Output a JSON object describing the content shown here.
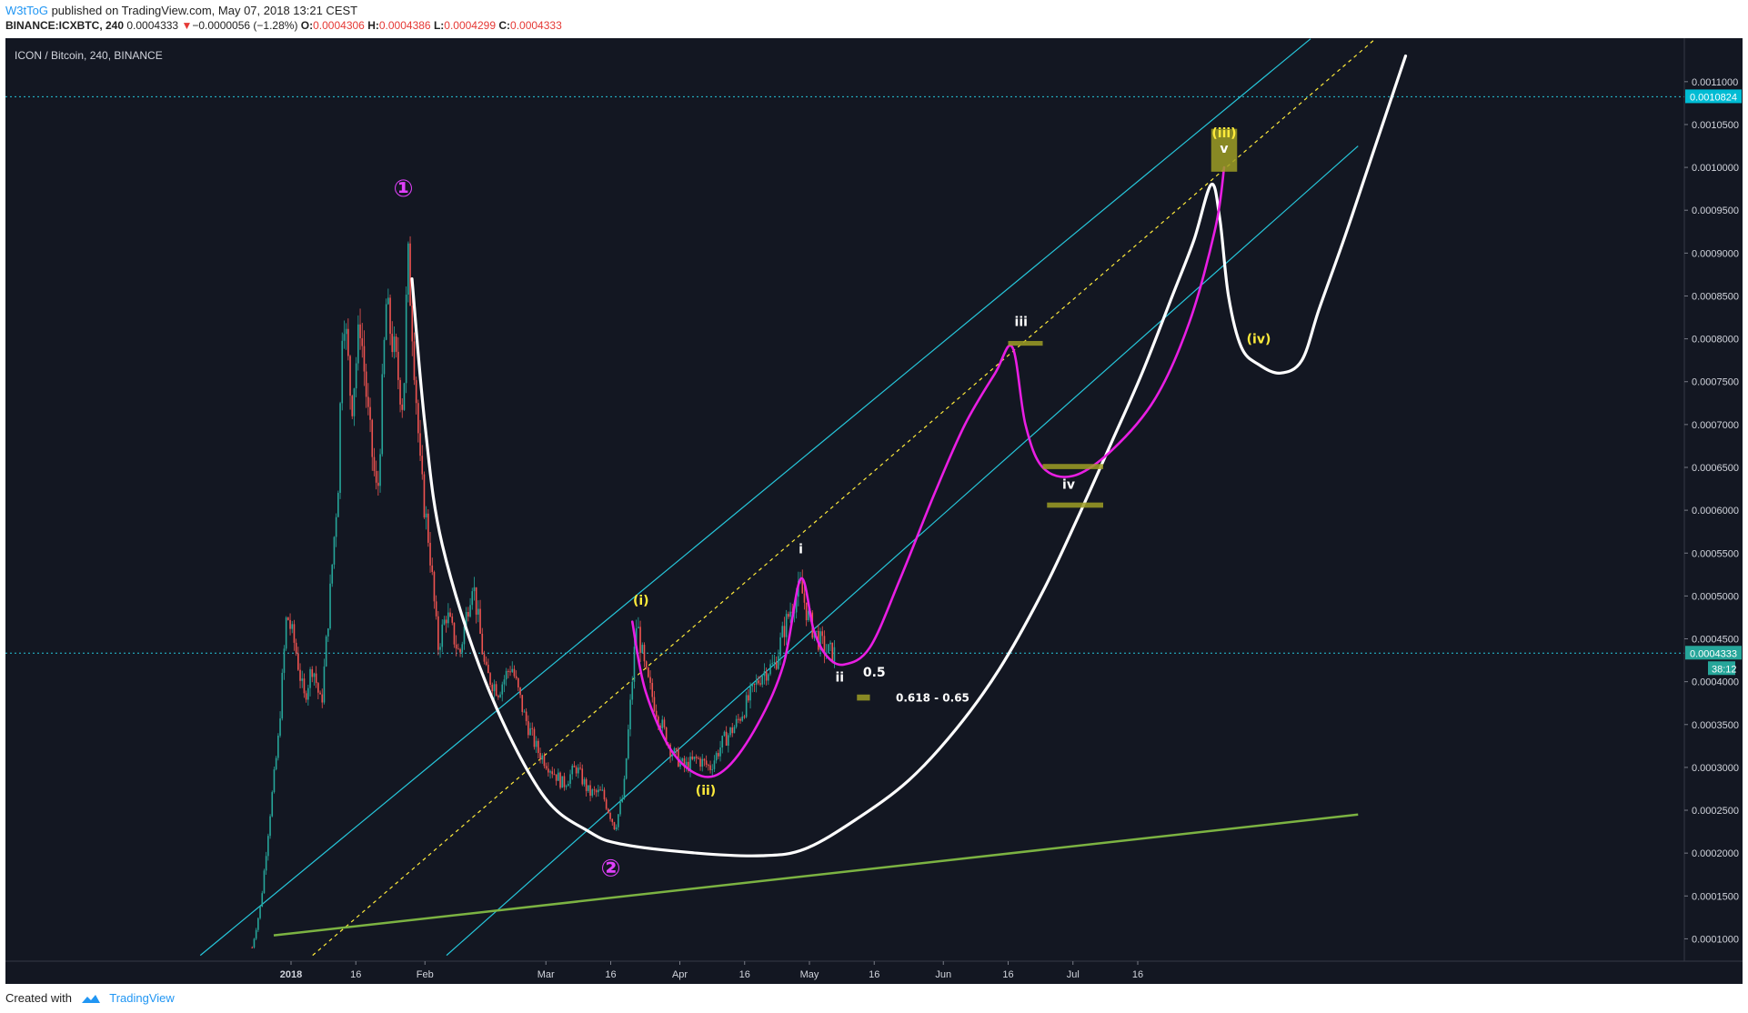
{
  "header": {
    "user": "W3tToG",
    "published": " published on TradingView.com, May 07, 2018 13:21 CEST",
    "symbol": "BINANCE:ICXBTC, 240",
    "last": "0.0004333",
    "change_arrow": "▼",
    "change": "−0.0000056 (−1.28%)",
    "o_label": "O:",
    "o_value": "0.0004306",
    "h_label": "H:",
    "h_value": "0.0004386",
    "l_label": "L:",
    "l_value": "0.0004299",
    "c_label": "C:",
    "c_value": "0.0004333"
  },
  "chart_title": "ICON / Bitcoin, 240, BINANCE",
  "footer": {
    "created_with": "Created with",
    "brand": "TradingView"
  },
  "colors": {
    "background": "#131722",
    "axis_text": "#d1d4dc",
    "channel": "#26c6da",
    "midline": "#ffeb3b",
    "support": "#7cb342",
    "white_path": "#ffffff",
    "magenta_path": "#e91ee3",
    "wave_label_yellow": "#ffeb3b",
    "wave_label_white": "#ffffff",
    "wave_label_magenta": "#e040fb",
    "price_line": "#26c6da",
    "box": "#9e9d24",
    "candle_up": "#26a69a",
    "candle_down": "#ef5350"
  },
  "chart_data": {
    "type": "candlestick",
    "title": "ICON / Bitcoin, 240, BINANCE",
    "xlabel": "",
    "ylabel": "",
    "x_tick_labels": [
      "2018",
      "16",
      "Feb",
      "Mar",
      "16",
      "Apr",
      "16",
      "May",
      "16",
      "Jun",
      "16",
      "Jul",
      "16"
    ],
    "x_tick_dates": [
      "2018-01-01",
      "2018-01-16",
      "2018-02-01",
      "2018-03-01",
      "2018-03-16",
      "2018-04-01",
      "2018-04-16",
      "2018-05-01",
      "2018-05-16",
      "2018-06-01",
      "2018-06-16",
      "2018-07-01",
      "2018-07-16"
    ],
    "y_tick_labels": [
      "0.0001000",
      "0.0001500",
      "0.0002000",
      "0.0002500",
      "0.0003000",
      "0.0003500",
      "0.0004000",
      "0.0004500",
      "0.0005000",
      "0.0005500",
      "0.0006000",
      "0.0006500",
      "0.0007000",
      "0.0007500",
      "0.0008000",
      "0.0008500",
      "0.0009000",
      "0.0009500",
      "0.0010000",
      "0.0010500",
      "0.0011000"
    ],
    "ylim": [
      8.2e-05,
      0.00114
    ],
    "grid": false,
    "current_price": {
      "value": 0.0004333,
      "label": "0.0004333",
      "countdown": "38:12"
    },
    "horizontal_line": {
      "value": 0.0010824,
      "label": "0.0010824"
    },
    "price_path": [
      [
        "2017-12-23",
        9e-05
      ],
      [
        "2017-12-25",
        0.00014
      ],
      [
        "2017-12-27",
        0.00024
      ],
      [
        "2017-12-29",
        0.00033
      ],
      [
        "2017-12-31",
        0.00048
      ],
      [
        "2018-01-02",
        0.00044
      ],
      [
        "2018-01-04",
        0.00038
      ],
      [
        "2018-01-06",
        0.00042
      ],
      [
        "2018-01-08",
        0.00037
      ],
      [
        "2018-01-10",
        0.0005
      ],
      [
        "2018-01-12",
        0.00064
      ],
      [
        "2018-01-13",
        0.00085
      ],
      [
        "2018-01-15",
        0.00072
      ],
      [
        "2018-01-17",
        0.00082
      ],
      [
        "2018-01-19",
        0.0007
      ],
      [
        "2018-01-21",
        0.00061
      ],
      [
        "2018-01-23",
        0.00084
      ],
      [
        "2018-01-25",
        0.00078
      ],
      [
        "2018-01-27",
        0.00072
      ],
      [
        "2018-01-28",
        0.0009
      ],
      [
        "2018-01-29",
        0.00082
      ],
      [
        "2018-01-31",
        0.00064
      ],
      [
        "2018-02-02",
        0.00056
      ],
      [
        "2018-02-04",
        0.00044
      ],
      [
        "2018-02-06",
        0.00048
      ],
      [
        "2018-02-09",
        0.00043
      ],
      [
        "2018-02-12",
        0.00052
      ],
      [
        "2018-02-15",
        0.00041
      ],
      [
        "2018-02-18",
        0.00039
      ],
      [
        "2018-02-21",
        0.00042
      ],
      [
        "2018-02-24",
        0.00036
      ],
      [
        "2018-02-27",
        0.00032
      ],
      [
        "2018-03-02",
        0.0003
      ],
      [
        "2018-03-05",
        0.00028
      ],
      [
        "2018-03-08",
        0.0003
      ],
      [
        "2018-03-11",
        0.00027
      ],
      [
        "2018-03-14",
        0.00027
      ],
      [
        "2018-03-17",
        0.00023
      ],
      [
        "2018-03-19",
        0.00027
      ],
      [
        "2018-03-22",
        0.00047
      ],
      [
        "2018-03-24",
        0.00041
      ],
      [
        "2018-03-27",
        0.00036
      ],
      [
        "2018-03-30",
        0.00032
      ],
      [
        "2018-04-02",
        0.0003
      ],
      [
        "2018-04-05",
        0.00031
      ],
      [
        "2018-04-08",
        0.0003
      ],
      [
        "2018-04-11",
        0.00033
      ],
      [
        "2018-04-14",
        0.00035
      ],
      [
        "2018-04-17",
        0.00038
      ],
      [
        "2018-04-20",
        0.00041
      ],
      [
        "2018-04-23",
        0.00042
      ],
      [
        "2018-04-25",
        0.00046
      ],
      [
        "2018-04-27",
        0.00049
      ],
      [
        "2018-04-29",
        0.00051
      ],
      [
        "2018-05-01",
        0.00047
      ],
      [
        "2018-05-03",
        0.00045
      ],
      [
        "2018-05-05",
        0.000435
      ],
      [
        "2018-05-07",
        0.000433
      ]
    ],
    "channel_upper": [
      [
        "2017-12-11",
        8.07e-05
      ],
      [
        "2018-08-25",
        0.00115
      ]
    ],
    "channel_lower": [
      [
        "2018-02-06",
        8.07e-05
      ],
      [
        "2018-09-05",
        0.001025
      ]
    ],
    "channel_mid": [
      [
        "2018-01-06",
        8.07e-05
      ],
      [
        "2018-09-09",
        0.00115
      ]
    ],
    "support_line": [
      [
        "2017-12-28",
        0.000104
      ],
      [
        "2018-09-05",
        0.000245
      ]
    ],
    "white_projection": [
      [
        "2018-01-29",
        0.00087
      ],
      [
        "2018-02-01",
        0.0007
      ],
      [
        "2018-02-05",
        0.00056
      ],
      [
        "2018-02-15",
        0.0004
      ],
      [
        "2018-02-28",
        0.00027
      ],
      [
        "2018-03-11",
        0.000225
      ],
      [
        "2018-03-19",
        0.00021
      ],
      [
        "2018-04-05",
        0.0002
      ],
      [
        "2018-04-20",
        0.000197
      ],
      [
        "2018-04-30",
        0.000205
      ],
      [
        "2018-05-12",
        0.00024
      ],
      [
        "2018-05-24",
        0.000285
      ],
      [
        "2018-06-04",
        0.000345
      ],
      [
        "2018-06-14",
        0.000415
      ],
      [
        "2018-06-24",
        0.000505
      ],
      [
        "2018-07-02",
        0.00059
      ],
      [
        "2018-07-10",
        0.00068
      ],
      [
        "2018-07-17",
        0.00076
      ],
      [
        "2018-07-24",
        0.00085
      ],
      [
        "2018-07-29",
        0.000915
      ],
      [
        "2018-08-02",
        0.00098
      ],
      [
        "2018-08-04",
        0.00094
      ],
      [
        "2018-08-06",
        0.00085
      ],
      [
        "2018-08-09",
        0.00079
      ],
      [
        "2018-08-13",
        0.00077
      ],
      [
        "2018-08-18",
        0.00076
      ],
      [
        "2018-08-23",
        0.000775
      ],
      [
        "2018-08-27",
        0.000835
      ],
      [
        "2018-09-02",
        0.00092
      ],
      [
        "2018-09-08",
        0.00101
      ],
      [
        "2018-09-16",
        0.00113
      ]
    ],
    "magenta_projection": [
      [
        "2018-03-21",
        0.00047
      ],
      [
        "2018-03-24",
        0.00039
      ],
      [
        "2018-03-30",
        0.00032
      ],
      [
        "2018-04-06",
        0.00029
      ],
      [
        "2018-04-12",
        0.0003
      ],
      [
        "2018-04-19",
        0.00035
      ],
      [
        "2018-04-25",
        0.00042
      ],
      [
        "2018-04-29",
        0.00052
      ],
      [
        "2018-05-02",
        0.00046
      ],
      [
        "2018-05-05",
        0.00043
      ],
      [
        "2018-05-09",
        0.00042
      ],
      [
        "2018-05-15",
        0.00044
      ],
      [
        "2018-05-22",
        0.00052
      ],
      [
        "2018-05-30",
        0.00062
      ],
      [
        "2018-06-06",
        0.0007
      ],
      [
        "2018-06-13",
        0.00076
      ],
      [
        "2018-06-17",
        0.00079
      ],
      [
        "2018-06-20",
        0.0007
      ],
      [
        "2018-06-24",
        0.00065
      ],
      [
        "2018-07-01",
        0.00064
      ],
      [
        "2018-07-10",
        0.00067
      ],
      [
        "2018-07-20",
        0.00073
      ],
      [
        "2018-07-28",
        0.00082
      ],
      [
        "2018-08-03",
        0.00093
      ],
      [
        "2018-08-05",
        0.001
      ]
    ],
    "boxes": [
      {
        "from": "2018-06-16",
        "to": "2018-06-24",
        "ymin": 0.000792,
        "ymax": 0.0007975
      },
      {
        "from": "2018-06-24",
        "to": "2018-07-08",
        "ymin": 0.000648,
        "ymax": 0.000654
      },
      {
        "from": "2018-06-25",
        "to": "2018-07-08",
        "ymin": 0.000603,
        "ymax": 0.000609
      },
      {
        "from": "2018-05-12",
        "to": "2018-05-15",
        "ymin": 0.000378,
        "ymax": 0.000385
      },
      {
        "from": "2018-08-02",
        "to": "2018-08-08",
        "ymin": 0.000995,
        "ymax": 0.001045
      }
    ],
    "annotations": [
      {
        "text": "①",
        "x": "2018-01-27",
        "y": 0.000966,
        "color": "magenta"
      },
      {
        "text": "②",
        "x": "2018-03-16",
        "y": 0.000173,
        "color": "magenta"
      },
      {
        "text": "(i)",
        "x": "2018-03-23",
        "y": 0.00049,
        "color": "yellow"
      },
      {
        "text": "(ii)",
        "x": "2018-04-07",
        "y": 0.000268,
        "color": "yellow"
      },
      {
        "text": "i",
        "x": "2018-04-29",
        "y": 0.00055,
        "color": "white"
      },
      {
        "text": "ii",
        "x": "2018-05-08",
        "y": 0.0004,
        "color": "white"
      },
      {
        "text": "0.5",
        "x": "2018-05-16",
        "y": 0.000406,
        "color": "white"
      },
      {
        "text": "0.618 - 0.65",
        "x": "2018-05-21",
        "y": 0.000377,
        "color": "white"
      },
      {
        "text": "iii",
        "x": "2018-06-19",
        "y": 0.000815,
        "color": "white"
      },
      {
        "text": "iv",
        "x": "2018-06-30",
        "y": 0.000625,
        "color": "white"
      },
      {
        "text": "(iii)",
        "x": "2018-08-05",
        "y": 0.001035,
        "color": "yellow"
      },
      {
        "text": "v",
        "x": "2018-08-05",
        "y": 0.001017,
        "color": "white"
      },
      {
        "text": "(iv)",
        "x": "2018-08-13",
        "y": 0.000795,
        "color": "yellow"
      }
    ]
  }
}
